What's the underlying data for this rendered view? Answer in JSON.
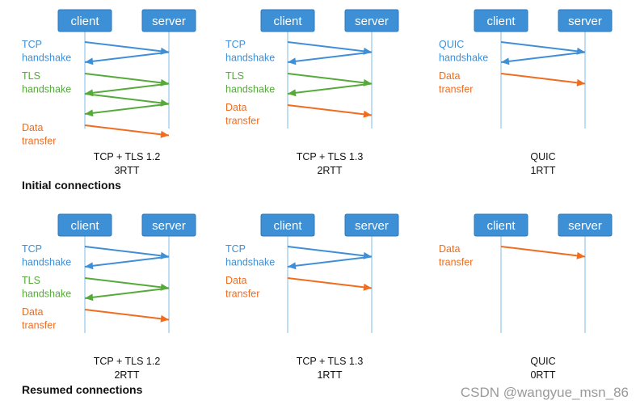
{
  "colors": {
    "box": "#3d8fd6",
    "box_border": "#2f77b8",
    "box_text": "#ffffff",
    "lifeline": "#7fbde8",
    "tcp": "#3f8fd6",
    "tls": "#55aa3a",
    "data": "#f06c1e",
    "caption": "#111111"
  },
  "labels": {
    "client": "client",
    "server": "server",
    "tcp": [
      "TCP",
      "handshake"
    ],
    "tls": [
      "TLS",
      "handshake"
    ],
    "quic": [
      "QUIC",
      "handshake"
    ],
    "data": [
      "Data",
      "transfer"
    ]
  },
  "rows": [
    {
      "title": "Initial connections",
      "diagrams": [
        {
          "id": "initial-tcp-tls12",
          "caption": [
            "TCP + TLS 1.2",
            "3RTT"
          ],
          "phases": [
            {
              "kind": "tcp",
              "label": "tcp",
              "messages": [
                "c2s",
                "s2c"
              ]
            },
            {
              "kind": "tls",
              "label": "tls",
              "messages": [
                "c2s",
                "s2c",
                "c2s",
                "s2c"
              ]
            },
            {
              "kind": "data",
              "label": "data",
              "messages": [
                "c2s"
              ]
            }
          ]
        },
        {
          "id": "initial-tcp-tls13",
          "caption": [
            "TCP + TLS 1.3",
            "2RTT"
          ],
          "phases": [
            {
              "kind": "tcp",
              "label": "tcp",
              "messages": [
                "c2s",
                "s2c"
              ]
            },
            {
              "kind": "tls",
              "label": "tls",
              "messages": [
                "c2s",
                "s2c"
              ]
            },
            {
              "kind": "data",
              "label": "data",
              "messages": [
                "c2s"
              ]
            }
          ]
        },
        {
          "id": "initial-quic",
          "caption": [
            "QUIC",
            "1RTT"
          ],
          "phases": [
            {
              "kind": "tcp",
              "label": "quic",
              "messages": [
                "c2s",
                "s2c"
              ]
            },
            {
              "kind": "data",
              "label": "data",
              "messages": [
                "c2s"
              ]
            }
          ]
        }
      ]
    },
    {
      "title": "Resumed connections",
      "diagrams": [
        {
          "id": "resumed-tcp-tls12",
          "caption": [
            "TCP + TLS 1.2",
            "2RTT"
          ],
          "phases": [
            {
              "kind": "tcp",
              "label": "tcp",
              "messages": [
                "c2s",
                "s2c"
              ]
            },
            {
              "kind": "tls",
              "label": "tls",
              "messages": [
                "c2s",
                "s2c"
              ]
            },
            {
              "kind": "data",
              "label": "data",
              "messages": [
                "c2s"
              ]
            }
          ]
        },
        {
          "id": "resumed-tcp-tls13",
          "caption": [
            "TCP + TLS 1.3",
            "1RTT"
          ],
          "phases": [
            {
              "kind": "tcp",
              "label": "tcp",
              "messages": [
                "c2s",
                "s2c"
              ]
            },
            {
              "kind": "data",
              "label": "data",
              "messages": [
                "c2s"
              ]
            }
          ]
        },
        {
          "id": "resumed-quic",
          "caption": [
            "QUIC",
            "0RTT"
          ],
          "phases": [
            {
              "kind": "data",
              "label": "data",
              "messages": [
                "c2s"
              ]
            }
          ]
        }
      ]
    }
  ],
  "watermark": "CSDN @wangyue_msn_86"
}
